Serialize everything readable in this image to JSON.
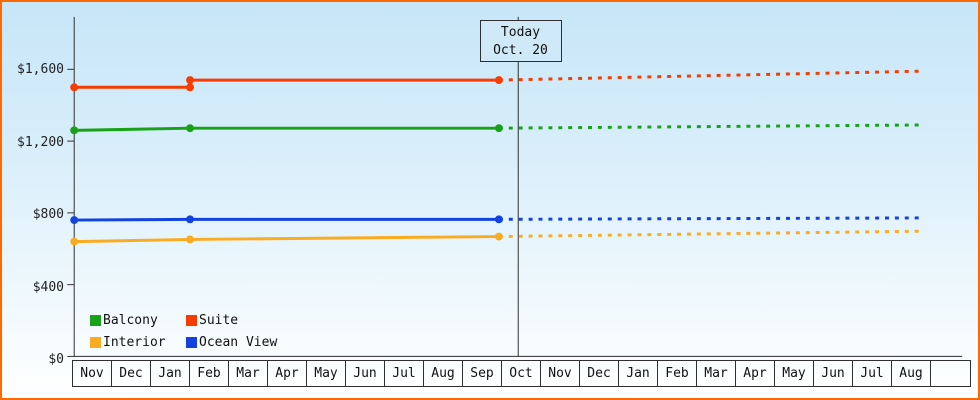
{
  "frame": {
    "border_color": "#ff6a00",
    "background_top": "#c7e6f8",
    "background_bottom": "#ffffff"
  },
  "chart_data": {
    "type": "line",
    "title": "",
    "xlabel": "",
    "ylabel": "",
    "x_categories": [
      "Nov",
      "Dec",
      "Jan",
      "Feb",
      "Mar",
      "Apr",
      "May",
      "Jun",
      "Jul",
      "Aug",
      "Sep",
      "Oct",
      "Nov",
      "Dec",
      "Jan",
      "Feb",
      "Mar",
      "Apr",
      "May",
      "Jun",
      "Jul",
      "Aug"
    ],
    "ylim": [
      0,
      1600
    ],
    "y_ticks": [
      {
        "value": 0,
        "label": "$0"
      },
      {
        "value": 400,
        "label": "$400"
      },
      {
        "value": 800,
        "label": "$800"
      },
      {
        "value": 1200,
        "label": "$1,200"
      },
      {
        "value": 1600,
        "label": "$1,600"
      }
    ],
    "grid": "off",
    "legend_position": "bottom-left",
    "today": {
      "label": "Today",
      "date": "Oct. 20",
      "month_index": 11
    },
    "series": [
      {
        "name": "Balcony",
        "color": "#17a317",
        "solid": [
          [
            0,
            1260
          ],
          [
            3,
            1272
          ],
          [
            11,
            1272
          ]
        ],
        "dashed": [
          [
            11,
            1272
          ],
          [
            22,
            1290
          ]
        ]
      },
      {
        "name": "Suite",
        "color": "#f83b00",
        "solid": [
          [
            0,
            1500
          ],
          [
            3,
            1500
          ],
          [
            3,
            1540
          ],
          [
            11,
            1540
          ]
        ],
        "dashed": [
          [
            11,
            1540
          ],
          [
            22,
            1590
          ]
        ]
      },
      {
        "name": "Interior",
        "color": "#fbab20",
        "solid": [
          [
            0,
            640
          ],
          [
            3,
            652
          ],
          [
            11,
            668
          ]
        ],
        "dashed": [
          [
            11,
            668
          ],
          [
            22,
            698
          ]
        ]
      },
      {
        "name": "Ocean View",
        "color": "#1243e0",
        "solid": [
          [
            0,
            760
          ],
          [
            3,
            764
          ],
          [
            11,
            764
          ]
        ],
        "dashed": [
          [
            11,
            764
          ],
          [
            22,
            772
          ]
        ]
      }
    ]
  }
}
